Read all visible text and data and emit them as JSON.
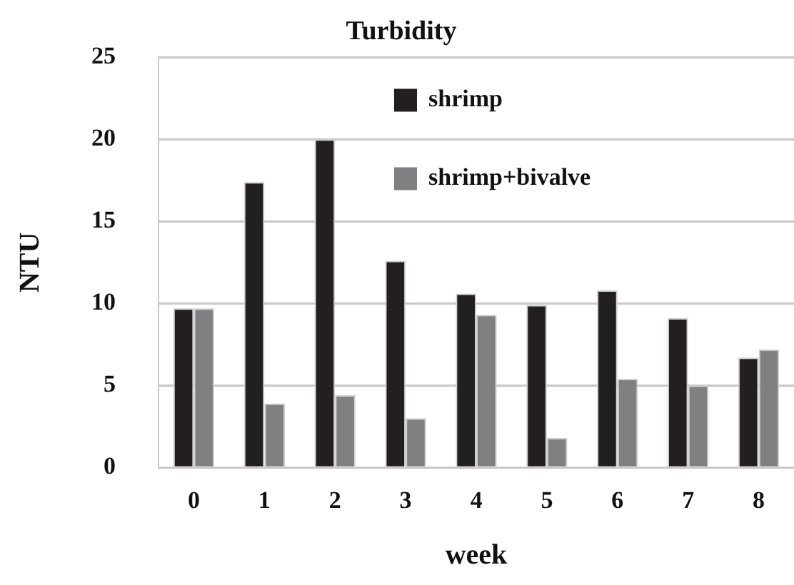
{
  "chart_data": {
    "type": "bar",
    "title": "Turbidity",
    "xlabel": "week",
    "ylabel": "NTU",
    "categories": [
      "0",
      "1",
      "2",
      "3",
      "4",
      "5",
      "6",
      "7",
      "8"
    ],
    "series": [
      {
        "name": "shrimp",
        "color": "#231f20",
        "values": [
          9.7,
          17.4,
          20.0,
          12.6,
          10.6,
          9.9,
          10.8,
          9.1,
          6.7
        ]
      },
      {
        "name": "shrimp+bivalve",
        "color": "#808083",
        "values": [
          9.7,
          3.9,
          4.4,
          3.0,
          9.3,
          1.8,
          5.4,
          5.0,
          7.2
        ]
      }
    ],
    "ylim": [
      0,
      25
    ],
    "yticks": [
      0,
      5,
      10,
      15,
      20,
      25
    ],
    "grid": "y",
    "legend": "top"
  }
}
